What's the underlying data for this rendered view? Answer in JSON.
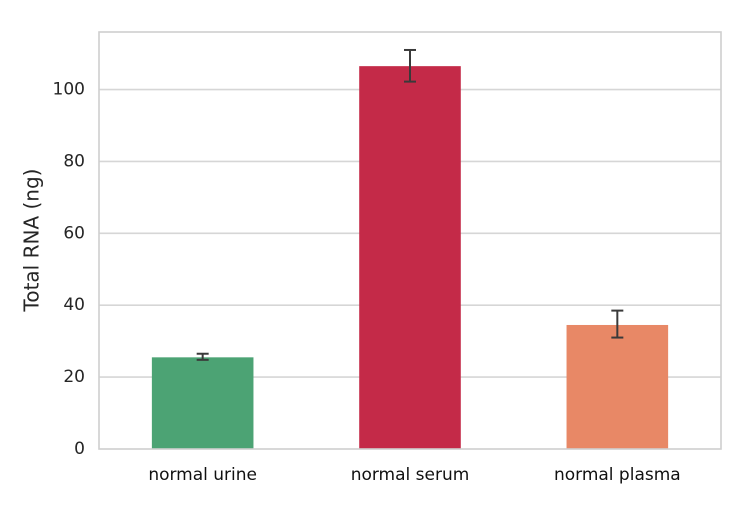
{
  "chart_data": {
    "type": "bar",
    "title": "",
    "xlabel": "",
    "ylabel": "Total RNA (ng)",
    "categories": [
      "normal urine",
      "normal serum",
      "normal plasma"
    ],
    "values": [
      25.5,
      106.5,
      34.5
    ],
    "error_low": [
      24.8,
      102.2,
      31.0
    ],
    "error_high": [
      26.5,
      111.0,
      38.5
    ],
    "colors": [
      "#4ca374",
      "#c42a48",
      "#e88866"
    ],
    "ylim": [
      0,
      116
    ],
    "yticks": [
      0,
      20,
      40,
      60,
      80,
      100
    ],
    "grid": true
  }
}
